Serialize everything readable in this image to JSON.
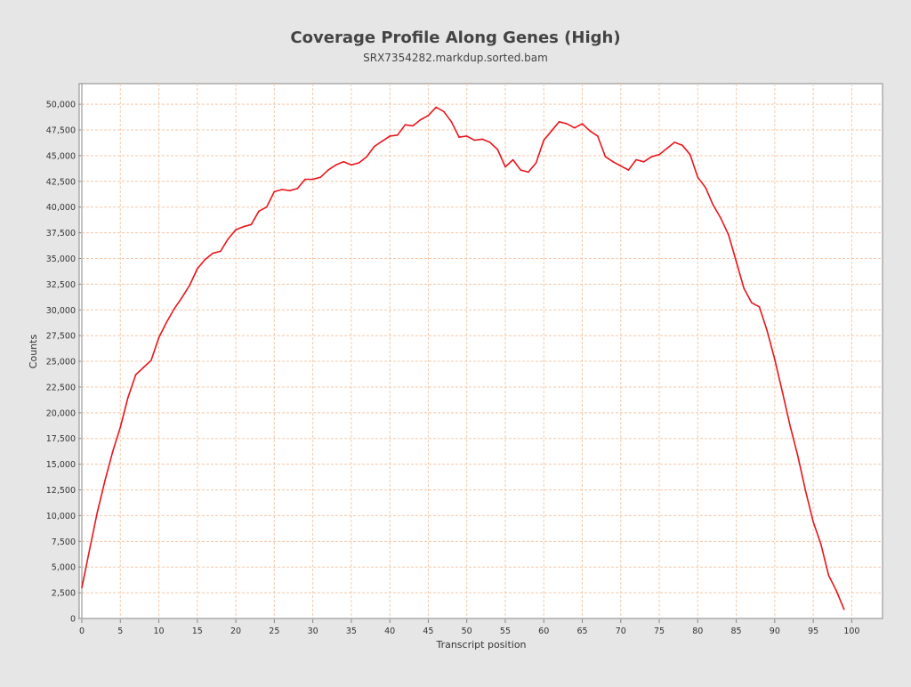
{
  "chart_data": {
    "type": "line",
    "title": "Coverage Profile Along Genes (High)",
    "subtitle": "SRX7354282.markdup.sorted.bam",
    "xlabel": "Transcript position",
    "ylabel": "Counts",
    "xlim": [
      0,
      104
    ],
    "ylim": [
      0,
      52000
    ],
    "x_ticks": [
      0,
      5,
      10,
      15,
      20,
      25,
      30,
      35,
      40,
      45,
      50,
      55,
      60,
      65,
      70,
      75,
      80,
      85,
      90,
      95,
      100
    ],
    "x_tick_labels": [
      "0",
      "5",
      "10",
      "15",
      "20",
      "25",
      "30",
      "35",
      "40",
      "45",
      "50",
      "55",
      "60",
      "65",
      "70",
      "75",
      "80",
      "85",
      "90",
      "95",
      "100"
    ],
    "y_ticks": [
      0,
      2500,
      5000,
      7500,
      10000,
      12500,
      15000,
      17500,
      20000,
      22500,
      25000,
      27500,
      30000,
      32500,
      35000,
      37500,
      40000,
      42500,
      45000,
      47500,
      50000
    ],
    "y_tick_labels": [
      "0",
      "2,500",
      "5,000",
      "7,500",
      "10,000",
      "12,500",
      "15,000",
      "17,500",
      "20,000",
      "22,500",
      "25,000",
      "27,500",
      "30,000",
      "32,500",
      "35,000",
      "37,500",
      "40,000",
      "42,500",
      "45,000",
      "47,500",
      "50,000"
    ],
    "grid": true,
    "colors": {
      "line": "#e8151b",
      "grid": "#f5c8a8",
      "plot_background": "#ffffff",
      "page_background": "#e6e6e6",
      "axis": "#888888",
      "text": "#333333"
    },
    "series": [
      {
        "x": [
          0,
          1,
          2,
          3,
          4,
          5,
          6,
          7,
          8,
          9,
          10,
          11,
          12,
          13,
          14,
          15,
          16,
          17,
          18,
          19,
          20,
          21,
          22,
          23,
          24,
          25,
          26,
          27,
          28,
          29,
          30,
          31,
          32,
          33,
          34,
          35,
          36,
          37,
          38,
          39,
          40,
          41,
          42,
          43,
          44,
          45,
          46,
          47,
          48,
          49,
          50,
          51,
          52,
          53,
          54,
          55,
          56,
          57,
          58,
          59,
          60,
          61,
          62,
          63,
          64,
          65,
          66,
          67,
          68,
          69,
          70,
          71,
          72,
          73,
          74,
          75,
          76,
          77,
          78,
          79,
          80,
          81,
          82,
          83,
          84,
          85,
          86,
          87,
          88,
          89,
          90,
          91,
          92,
          93,
          94,
          95,
          96,
          97,
          98,
          99
        ],
        "values": [
          3000,
          6700,
          10300,
          13400,
          16200,
          18600,
          21500,
          23700,
          24400,
          25100,
          27300,
          28800,
          30100,
          31200,
          32400,
          34000,
          34900,
          35500,
          35700,
          36900,
          37800,
          38100,
          38300,
          39600,
          40000,
          41500,
          41700,
          41600,
          41800,
          42700,
          42700,
          42900,
          43600,
          44100,
          44400,
          44100,
          44300,
          44900,
          45900,
          46400,
          46900,
          47000,
          48000,
          47900,
          48500,
          48900,
          49700,
          49300,
          48300,
          46800,
          46900,
          46500,
          46600,
          46300,
          45600,
          43900,
          44600,
          43600,
          43400,
          44300,
          46500,
          47400,
          48300,
          48100,
          47700,
          48100,
          47400,
          46900,
          44900,
          44400,
          44000,
          43600,
          44600,
          44400,
          44900,
          45100,
          45700,
          46300,
          46000,
          45100,
          42900,
          41900,
          40200,
          38900,
          37300,
          34700,
          32100,
          30700,
          30300,
          28000,
          25200,
          22000,
          18700,
          15800,
          12400,
          9400,
          7200,
          4200,
          2700,
          900
        ]
      }
    ]
  }
}
